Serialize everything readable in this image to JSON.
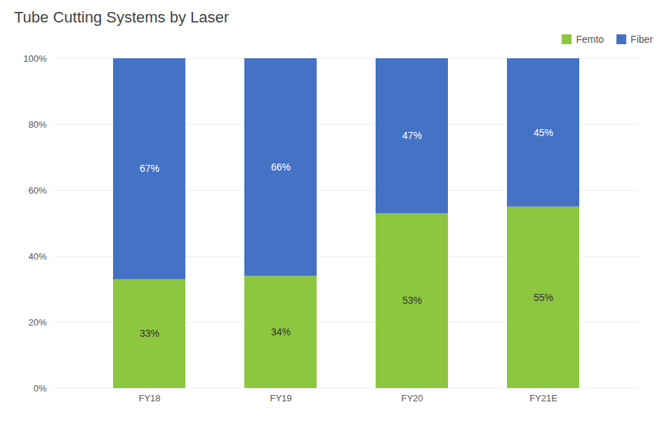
{
  "chart_data": {
    "type": "bar",
    "title": "Tube Cutting Systems  by Laser",
    "categories": [
      "FY18",
      "FY19",
      "FY20",
      "FY21E"
    ],
    "series": [
      {
        "name": "Femto",
        "color": "#8DC63F",
        "values": [
          33,
          34,
          53,
          55
        ],
        "value_labels": [
          "33%",
          "34%",
          "53%",
          "55%"
        ]
      },
      {
        "name": "Fiber",
        "color": "#4472C4",
        "values": [
          67,
          66,
          47,
          45
        ],
        "value_labels": [
          "67%",
          "66%",
          "47%",
          "45%"
        ]
      }
    ],
    "stacked": true,
    "data_labels": true,
    "ylim": [
      0,
      100
    ],
    "yticks": [
      {
        "value": 0,
        "label": "0%"
      },
      {
        "value": 20,
        "label": "20%"
      },
      {
        "value": 40,
        "label": "40%"
      },
      {
        "value": 60,
        "label": "60%"
      },
      {
        "value": 80,
        "label": "80%"
      },
      {
        "value": 100,
        "label": "100%"
      }
    ],
    "grid": true,
    "legend": "upper right"
  }
}
